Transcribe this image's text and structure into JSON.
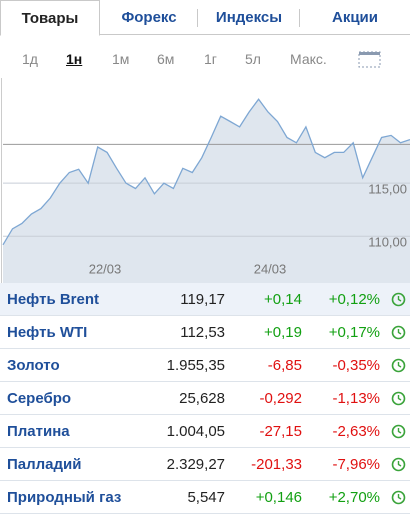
{
  "tabs": [
    "Товары",
    "Форекс",
    "Индексы",
    "Акции"
  ],
  "active_tab": 0,
  "periods": [
    "1д",
    "1н",
    "1м",
    "6м",
    "1г",
    "5л",
    "Макс."
  ],
  "active_period": 1,
  "chart": {
    "type": "line",
    "color": "#7ea7d3",
    "fill": "#dfe6ee",
    "values": [
      109.2,
      110.7,
      111.2,
      112.1,
      112.6,
      113.6,
      115.0,
      116.0,
      116.3,
      115.0,
      118.4,
      117.9,
      116.4,
      115.0,
      114.5,
      115.5,
      114.0,
      115.0,
      114.5,
      116.4,
      116.0,
      117.4,
      119.3,
      121.3,
      120.8,
      120.3,
      121.7,
      122.9,
      121.7,
      120.8,
      119.3,
      118.8,
      120.3,
      117.9,
      117.4,
      117.9,
      117.9,
      118.8,
      115.5,
      117.4,
      119.3,
      119.5,
      118.8,
      119.1
    ],
    "ylim": [
      105.6,
      124.9
    ],
    "yticks": [
      {
        "value": 115,
        "label": "115,00"
      },
      {
        "value": 110,
        "label": "110,00"
      }
    ],
    "reference_line": 118.65,
    "x_labels": [
      "22/03",
      "24/03"
    ]
  },
  "table": {
    "rows": [
      [
        "Нефть Brent",
        "119,17",
        "+0,14",
        "+0,12%"
      ],
      [
        "Нефть WTI",
        "112,53",
        "+0,19",
        "+0,17%"
      ],
      [
        "Золото",
        "1.955,35",
        "-6,85",
        "-0,35%"
      ],
      [
        "Серебро",
        "25,628",
        "-0,292",
        "-1,13%"
      ],
      [
        "Платина",
        "1.004,05",
        "-27,15",
        "-2,63%"
      ],
      [
        "Палладий",
        "2.329,27",
        "-201,33",
        "-7,96%"
      ],
      [
        "Природный газ",
        "5,547",
        "+0,146",
        "+2,70%"
      ]
    ]
  }
}
